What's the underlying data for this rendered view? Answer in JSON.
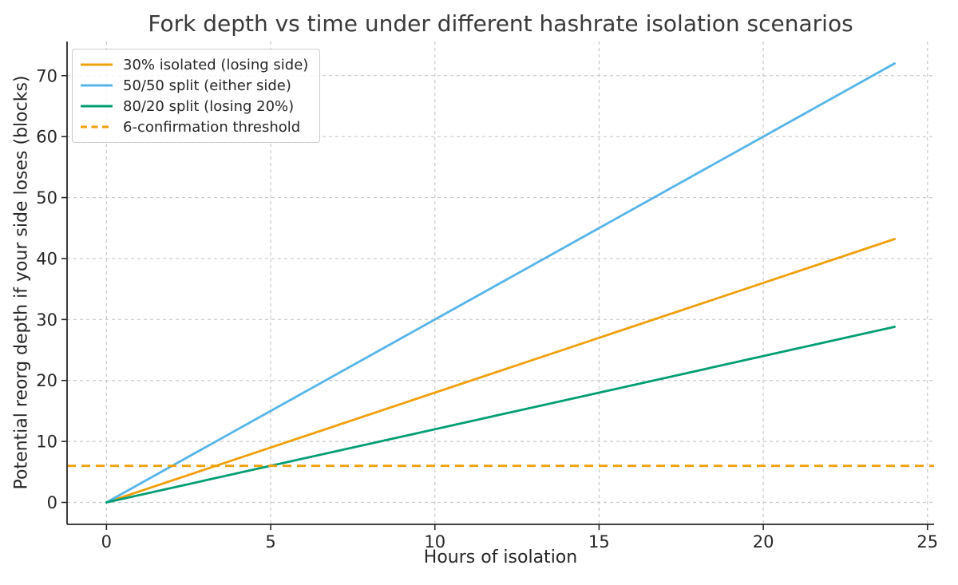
{
  "chart_data": {
    "type": "line",
    "title": "Fork depth vs time under different hashrate isolation scenarios",
    "xlabel": "Hours of isolation",
    "ylabel": "Potential reorg depth if your side loses (blocks)",
    "xlim": [
      -1.2,
      25.2
    ],
    "ylim": [
      -3.6,
      75.6
    ],
    "xticks": [
      0,
      5,
      10,
      15,
      20,
      25
    ],
    "yticks": [
      0,
      10,
      20,
      30,
      40,
      50,
      60,
      70
    ],
    "grid": true,
    "grid_style": "dashed",
    "legend_position": "upper-left",
    "series": [
      {
        "name": "30% isolated (losing side)",
        "color": "#EFA00B",
        "dash": "solid",
        "x": [
          0,
          24
        ],
        "y": [
          0,
          43.2
        ]
      },
      {
        "name": "50/50 split (either side)",
        "color": "#56B4E9",
        "dash": "solid",
        "x": [
          0,
          24
        ],
        "y": [
          0,
          72
        ]
      },
      {
        "name": "80/20 split (losing 20%)",
        "color": "#029E73",
        "dash": "solid",
        "x": [
          0,
          24
        ],
        "y": [
          0,
          28.8
        ]
      },
      {
        "name": "6-confirmation threshold",
        "color": "#EFA00B",
        "dash": "dashed",
        "type": "hline",
        "y_value": 6
      }
    ]
  },
  "colors": {
    "background": "#ffffff",
    "grid": "#c9c9c9",
    "spine": "#262626",
    "text": "#262626",
    "title": "#3a3a3a",
    "legend_border": "#cccccc"
  }
}
